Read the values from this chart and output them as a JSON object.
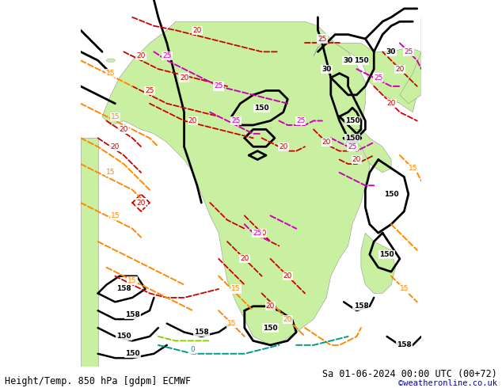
{
  "title_left": "Height/Temp. 850 hPa [gdpm] ECMWF",
  "title_right": "Sa 01-06-2024 00:00 UTC (00+72)",
  "watermark": "©weatheronline.co.uk",
  "bg_color": "#d0d0d0",
  "land_color": "#c8f0a0",
  "border_color": "#888888",
  "fig_width": 6.34,
  "fig_height": 4.9,
  "dpi": 100,
  "title_fontsize": 8.5,
  "watermark_color": "#0000bb",
  "watermark_fontsize": 7.5,
  "colors": {
    "black": "#000000",
    "red": "#cc0000",
    "magenta": "#cc00bb",
    "orange": "#ff8800",
    "green_lime": "#88cc00",
    "teal": "#009988"
  }
}
